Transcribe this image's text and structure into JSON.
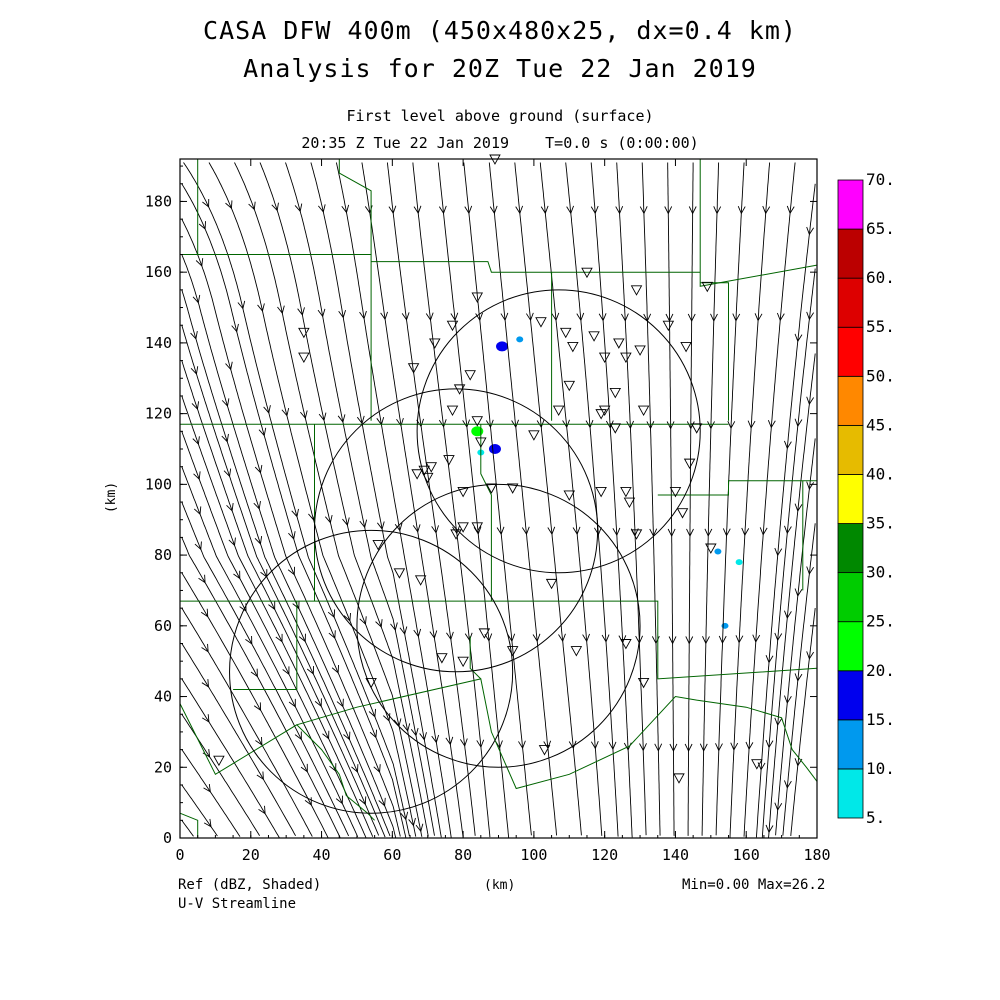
{
  "title_line1": "CASA DFW 400m (450x480x25, dx=0.4 km)",
  "title_line2": "Analysis for 20Z Tue 22 Jan 2019",
  "subtitle_line1": "First level above ground (surface)",
  "subtitle_line2": "20:35 Z Tue 22 Jan 2019    T=0.0 s (0:00:00)",
  "footer_left_1": "Ref (dBZ, Shaded)",
  "footer_left_2": "U-V Streamline",
  "footer_right": "Min=0.00 Max=26.2",
  "colors": {
    "boundary": "#006400",
    "streamline": "#000000",
    "frame": "#000000"
  },
  "chart_data": {
    "type": "heatmap",
    "xlabel": "(km)",
    "ylabel": "(km)",
    "xlim": [
      0,
      180
    ],
    "ylim": [
      0,
      192
    ],
    "xticks": [
      0,
      20,
      40,
      60,
      80,
      100,
      120,
      140,
      160,
      180
    ],
    "yticks": [
      0,
      20,
      40,
      60,
      80,
      100,
      120,
      140,
      160,
      180
    ],
    "colorbar": {
      "levels": [
        "5.",
        "10.",
        "15.",
        "20.",
        "25.",
        "30.",
        "35.",
        "40.",
        "45.",
        "50.",
        "55.",
        "60.",
        "65.",
        "70."
      ],
      "colors": [
        "#00e8e8",
        "#0099ee",
        "#0000ee",
        "#00ff00",
        "#00cc00",
        "#008800",
        "#ffff00",
        "#e6bb00",
        "#ff8800",
        "#ff0000",
        "#dd0000",
        "#bb0000",
        "#ff00ff"
      ]
    },
    "radar_rings": [
      {
        "cx": 107,
        "cy": 115,
        "r": 40
      },
      {
        "cx": 78,
        "cy": 87,
        "r": 40
      },
      {
        "cx": 90,
        "cy": 60,
        "r": 40
      },
      {
        "cx": 54,
        "cy": 47,
        "r": 40
      }
    ],
    "stations": [
      [
        89,
        192
      ],
      [
        115,
        160
      ],
      [
        129,
        155
      ],
      [
        149,
        156
      ],
      [
        84,
        153
      ],
      [
        138,
        145
      ],
      [
        35,
        143
      ],
      [
        77,
        145
      ],
      [
        102,
        146
      ],
      [
        109,
        143
      ],
      [
        117,
        142
      ],
      [
        124,
        140
      ],
      [
        130,
        138
      ],
      [
        66,
        133
      ],
      [
        35,
        136
      ],
      [
        72,
        140
      ],
      [
        82,
        131
      ],
      [
        111,
        139
      ],
      [
        120,
        136
      ],
      [
        126,
        136
      ],
      [
        143,
        139
      ],
      [
        110,
        128
      ],
      [
        123,
        126
      ],
      [
        79,
        127
      ],
      [
        77,
        121
      ],
      [
        84,
        118
      ],
      [
        107,
        121
      ],
      [
        120,
        121
      ],
      [
        131,
        121
      ],
      [
        119,
        120
      ],
      [
        146,
        116
      ],
      [
        85,
        112
      ],
      [
        100,
        114
      ],
      [
        123,
        116
      ],
      [
        71,
        105
      ],
      [
        69,
        104
      ],
      [
        67,
        103
      ],
      [
        76,
        107
      ],
      [
        144,
        106
      ],
      [
        70,
        102
      ],
      [
        80,
        98
      ],
      [
        88,
        99
      ],
      [
        94,
        99
      ],
      [
        110,
        97
      ],
      [
        119,
        98
      ],
      [
        126,
        98
      ],
      [
        140,
        98
      ],
      [
        127,
        95
      ],
      [
        142,
        92
      ],
      [
        80,
        88
      ],
      [
        78,
        86
      ],
      [
        84,
        88
      ],
      [
        129,
        86
      ],
      [
        150,
        82
      ],
      [
        56,
        83
      ],
      [
        62,
        75
      ],
      [
        68,
        73
      ],
      [
        105,
        72
      ],
      [
        86,
        58
      ],
      [
        94,
        53
      ],
      [
        112,
        53
      ],
      [
        74,
        51
      ],
      [
        80,
        50
      ],
      [
        126,
        55
      ],
      [
        131,
        44
      ],
      [
        54,
        44
      ],
      [
        103,
        25
      ],
      [
        141,
        17
      ],
      [
        163,
        21
      ],
      [
        11,
        22
      ]
    ],
    "echoes": [
      {
        "x": 91,
        "y": 139,
        "dbz": 15
      },
      {
        "x": 96,
        "y": 141,
        "dbz": 10
      },
      {
        "x": 84,
        "y": 115,
        "dbz": 20
      },
      {
        "x": 89,
        "y": 110,
        "dbz": 15
      },
      {
        "x": 152,
        "y": 81,
        "dbz": 10
      },
      {
        "x": 158,
        "y": 78,
        "dbz": 5
      },
      {
        "x": 154,
        "y": 60,
        "dbz": 10
      },
      {
        "x": 85,
        "y": 109,
        "dbz": 5
      }
    ],
    "boundaries": [
      [
        [
          5,
          192
        ],
        [
          5,
          165
        ],
        [
          33,
          165
        ]
      ],
      [
        [
          0,
          165
        ],
        [
          54,
          165
        ],
        [
          54,
          183
        ],
        [
          45,
          188
        ],
        [
          45,
          192
        ]
      ],
      [
        [
          54,
          165
        ],
        [
          54,
          132
        ],
        [
          54,
          118
        ]
      ],
      [
        [
          54,
          163
        ],
        [
          87,
          163
        ],
        [
          88,
          160
        ],
        [
          139,
          160
        ],
        [
          147,
          160
        ]
      ],
      [
        [
          147,
          192
        ],
        [
          147,
          156
        ],
        [
          180,
          162
        ]
      ],
      [
        [
          147,
          157
        ],
        [
          155,
          157
        ],
        [
          155,
          118
        ]
      ],
      [
        [
          0,
          117
        ],
        [
          155,
          117
        ]
      ],
      [
        [
          105,
          160
        ],
        [
          105,
          118
        ]
      ],
      [
        [
          85,
          117
        ],
        [
          85,
          103
        ],
        [
          88,
          97
        ],
        [
          88,
          67
        ]
      ],
      [
        [
          38,
          117
        ],
        [
          38,
          67
        ]
      ],
      [
        [
          0,
          67
        ],
        [
          135,
          67
        ],
        [
          135,
          66
        ],
        [
          135,
          45
        ],
        [
          180,
          48
        ]
      ],
      [
        [
          135,
          97
        ],
        [
          155,
          97
        ],
        [
          155,
          101
        ],
        [
          180,
          101
        ]
      ],
      [
        [
          176,
          101
        ],
        [
          176,
          70
        ]
      ],
      [
        [
          33,
          67
        ],
        [
          33,
          42
        ],
        [
          15,
          42
        ]
      ],
      [
        [
          0,
          38
        ],
        [
          5,
          28
        ],
        [
          10,
          18
        ],
        [
          33,
          32
        ],
        [
          40,
          25
        ],
        [
          45,
          18
        ],
        [
          47,
          12
        ],
        [
          53,
          7
        ],
        [
          55,
          5
        ]
      ],
      [
        [
          33,
          32
        ],
        [
          50,
          37
        ],
        [
          85,
          45
        ],
        [
          88,
          30
        ],
        [
          95,
          14
        ],
        [
          110,
          18
        ],
        [
          127,
          26
        ],
        [
          140,
          40
        ],
        [
          146,
          39
        ],
        [
          160,
          37
        ],
        [
          170,
          34
        ],
        [
          173,
          25
        ],
        [
          177,
          20
        ],
        [
          180,
          16
        ]
      ],
      [
        [
          85,
          45
        ],
        [
          82,
          48
        ],
        [
          82,
          57
        ]
      ],
      [
        [
          5,
          0
        ],
        [
          5,
          5
        ],
        [
          0,
          7
        ]
      ]
    ]
  }
}
